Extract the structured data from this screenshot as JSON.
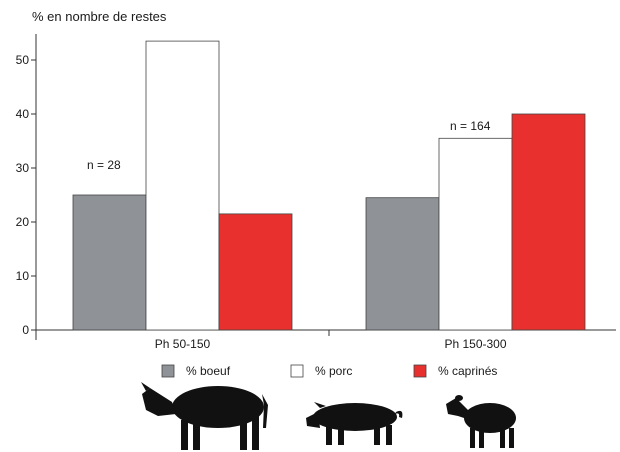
{
  "chart_data": {
    "type": "bar",
    "ylabel": "% en nombre de restes",
    "ylim": [
      0,
      56
    ],
    "yticks": [
      0,
      10,
      20,
      30,
      40,
      50
    ],
    "categories": [
      "Ph 50-150",
      "Ph 150-300"
    ],
    "series": [
      {
        "name": "% boeuf",
        "color": "#8f9297",
        "values": [
          25,
          24.5
        ]
      },
      {
        "name": "% porc",
        "color": "#ffffff",
        "values": [
          53.5,
          35.5
        ]
      },
      {
        "name": "% caprinés",
        "color": "#e8312e",
        "values": [
          21.5,
          40
        ]
      }
    ],
    "annotations": [
      "n = 28",
      "n = 164"
    ],
    "legend_position": "bottom",
    "grid": false,
    "illustrations": [
      "cow-silhouette",
      "pig-silhouette",
      "sheep-silhouette"
    ]
  }
}
